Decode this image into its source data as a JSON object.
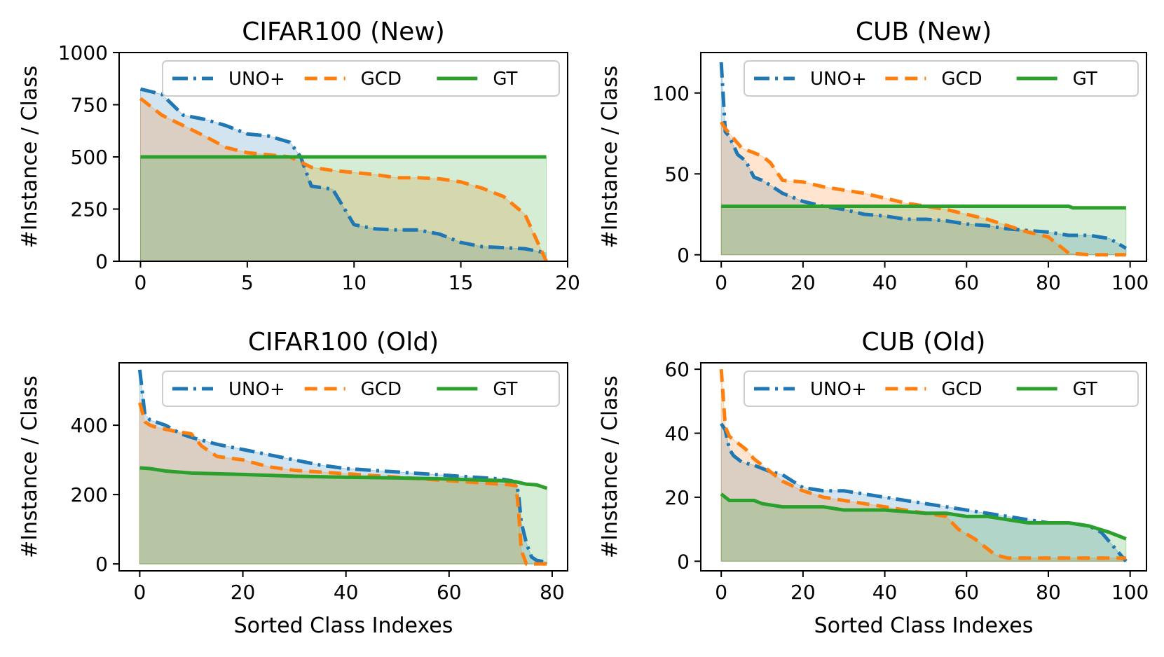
{
  "colors": {
    "uno": "#1f77b4",
    "gcd": "#ff7f0e",
    "gt": "#2ca02c"
  },
  "chart_data": [
    {
      "type": "line",
      "title": "CIFAR100 (New)",
      "xlabel": "",
      "ylabel": "#Instance / Class",
      "xlim": [
        -1,
        20
      ],
      "ylim": [
        0,
        1000
      ],
      "xticks": [
        0,
        5,
        10,
        15,
        20
      ],
      "yticks": [
        0,
        250,
        500,
        750,
        1000
      ],
      "legend": [
        "UNO+",
        "GCD",
        "GT"
      ],
      "series": [
        {
          "name": "UNO+",
          "x": [
            0,
            1,
            2,
            3,
            4,
            5,
            6,
            7,
            7.5,
            8,
            9,
            10,
            11,
            12,
            13,
            14,
            15,
            16,
            17,
            18,
            19
          ],
          "values": [
            825,
            800,
            700,
            680,
            650,
            610,
            600,
            570,
            500,
            360,
            345,
            175,
            155,
            150,
            150,
            130,
            90,
            70,
            65,
            60,
            40
          ]
        },
        {
          "name": "GCD",
          "x": [
            0,
            1,
            2,
            3,
            4,
            5,
            6,
            7,
            8,
            9,
            10,
            11,
            12,
            13,
            14,
            15,
            16,
            17,
            18,
            19
          ],
          "values": [
            780,
            700,
            650,
            600,
            545,
            520,
            510,
            500,
            450,
            435,
            425,
            415,
            400,
            400,
            395,
            380,
            350,
            310,
            225,
            0
          ]
        },
        {
          "name": "GT",
          "x": [
            0,
            19
          ],
          "values": [
            500,
            500
          ]
        }
      ]
    },
    {
      "type": "line",
      "title": "CUB (New)",
      "xlabel": "",
      "ylabel": "#Instance / Class",
      "xlim": [
        -5,
        104
      ],
      "ylim": [
        -4,
        125
      ],
      "xticks": [
        0,
        20,
        40,
        60,
        80,
        100
      ],
      "yticks": [
        0,
        50,
        100
      ],
      "legend": [
        "UNO+",
        "GCD",
        "GT"
      ],
      "series": [
        {
          "name": "UNO+",
          "x": [
            0,
            1,
            2,
            4,
            6,
            8,
            10,
            12,
            15,
            20,
            25,
            30,
            35,
            40,
            45,
            50,
            55,
            60,
            65,
            70,
            75,
            80,
            85,
            90,
            95,
            99
          ],
          "values": [
            119,
            76,
            73,
            62,
            58,
            48,
            46,
            43,
            38,
            33,
            30,
            28,
            25,
            24,
            22,
            22,
            21,
            19,
            18,
            16,
            15,
            14,
            12,
            12,
            10,
            4
          ]
        },
        {
          "name": "GCD",
          "x": [
            0,
            1,
            3,
            5,
            8,
            10,
            12,
            15,
            20,
            25,
            30,
            35,
            40,
            45,
            50,
            55,
            60,
            65,
            70,
            75,
            80,
            83,
            85,
            90,
            95,
            99
          ],
          "values": [
            82,
            78,
            72,
            66,
            63,
            61,
            57,
            46,
            45,
            42,
            40,
            38,
            35,
            32,
            30,
            28,
            25,
            22,
            18,
            14,
            11,
            5,
            1,
            0,
            0,
            0
          ]
        },
        {
          "name": "GT",
          "x": [
            0,
            85,
            86,
            99
          ],
          "values": [
            30,
            30,
            29,
            29
          ]
        }
      ]
    },
    {
      "type": "line",
      "title": "CIFAR100 (Old)",
      "xlabel": "Sorted Class Indexes",
      "ylabel": "#Instance / Class",
      "xlim": [
        -4,
        83
      ],
      "ylim": [
        -20,
        580
      ],
      "xticks": [
        0,
        20,
        40,
        60,
        80
      ],
      "yticks": [
        0,
        200,
        400
      ],
      "legend": [
        "UNO+",
        "GCD",
        "GT"
      ],
      "series": [
        {
          "name": "UNO+",
          "x": [
            0,
            1,
            2,
            5,
            8,
            10,
            15,
            20,
            25,
            30,
            35,
            40,
            45,
            50,
            55,
            60,
            65,
            70,
            72,
            73,
            73.5,
            74,
            75,
            76,
            77,
            79
          ],
          "values": [
            560,
            430,
            415,
            400,
            375,
            365,
            345,
            330,
            315,
            300,
            285,
            275,
            270,
            265,
            260,
            255,
            250,
            245,
            240,
            235,
            200,
            120,
            60,
            20,
            10,
            5
          ]
        },
        {
          "name": "GCD",
          "x": [
            0,
            1,
            2,
            3,
            6,
            10,
            12,
            15,
            20,
            25,
            30,
            35,
            40,
            45,
            50,
            55,
            60,
            65,
            70,
            72,
            73,
            73.5,
            74,
            75,
            76,
            79
          ],
          "values": [
            465,
            410,
            400,
            395,
            385,
            375,
            340,
            310,
            300,
            280,
            270,
            265,
            260,
            255,
            250,
            245,
            240,
            235,
            230,
            228,
            225,
            150,
            40,
            0,
            0,
            0
          ]
        },
        {
          "name": "GT",
          "x": [
            0,
            2,
            5,
            10,
            20,
            30,
            40,
            50,
            60,
            70,
            73,
            75,
            77,
            79
          ],
          "values": [
            277,
            275,
            268,
            262,
            258,
            253,
            250,
            248,
            245,
            240,
            237,
            230,
            228,
            218
          ]
        }
      ]
    },
    {
      "type": "line",
      "title": "CUB (Old)",
      "xlabel": "Sorted Class Indexes",
      "ylabel": "#Instance / Class",
      "xlim": [
        -5,
        104
      ],
      "ylim": [
        -3,
        62
      ],
      "xticks": [
        0,
        20,
        40,
        60,
        80,
        100
      ],
      "yticks": [
        0,
        20,
        40,
        60
      ],
      "legend": [
        "UNO+",
        "GCD",
        "GT"
      ],
      "series": [
        {
          "name": "UNO+",
          "x": [
            0,
            1,
            2,
            3,
            5,
            8,
            10,
            12,
            15,
            20,
            25,
            30,
            35,
            40,
            45,
            50,
            55,
            60,
            65,
            70,
            75,
            80,
            85,
            90,
            93,
            95,
            97,
            99
          ],
          "values": [
            43,
            41,
            35,
            33,
            31,
            30,
            29,
            28,
            27,
            23,
            22,
            22,
            21,
            20,
            19,
            18,
            17,
            16,
            15,
            14,
            13,
            12,
            12,
            11,
            9,
            6,
            3,
            0
          ]
        },
        {
          "name": "GCD",
          "x": [
            0,
            1,
            2,
            4,
            6,
            8,
            10,
            12,
            15,
            20,
            25,
            30,
            35,
            40,
            45,
            55,
            58,
            62,
            65,
            67,
            70,
            75,
            80,
            85,
            90,
            95,
            99
          ],
          "values": [
            60,
            42,
            39,
            37,
            35,
            32,
            30,
            28,
            25,
            22,
            20,
            19,
            18,
            17,
            16,
            14,
            10,
            7,
            4,
            2,
            1,
            1,
            1,
            1,
            1,
            1,
            1
          ]
        },
        {
          "name": "GT",
          "x": [
            0,
            1,
            2,
            5,
            8,
            10,
            15,
            20,
            25,
            30,
            40,
            50,
            55,
            60,
            65,
            70,
            75,
            80,
            85,
            90,
            95,
            97,
            99
          ],
          "values": [
            21,
            20,
            19,
            19,
            19,
            18,
            17,
            17,
            17,
            16,
            16,
            15,
            15,
            14,
            14,
            13,
            12,
            12,
            12,
            11,
            9,
            8,
            7
          ]
        }
      ]
    }
  ]
}
